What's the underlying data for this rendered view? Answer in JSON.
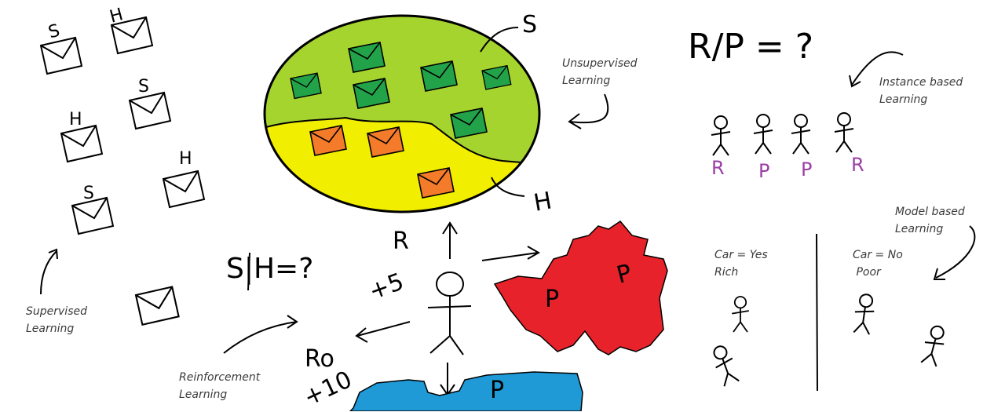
{
  "labels": {
    "unsupervised_1": "Unsupervised",
    "unsupervised_2": "Learning",
    "supervised_1": "Supervised",
    "supervised_2": "Learning",
    "reinforcement_1": "Reinforcement",
    "reinforcement_2": "Learning",
    "instance_1": "Instance based",
    "instance_2": "Learning",
    "model_1": "Model based",
    "model_2": "Learning",
    "car_yes": "Car = Yes",
    "rich": "Rich",
    "car_no": "Car = No",
    "poor": "Poor"
  },
  "handwriting": {
    "spam_s": "S",
    "ham_h": "H",
    "env_s1": "S",
    "env_h1": "H",
    "env_h2": "H",
    "env_s2": "S",
    "env_h3": "H",
    "env_s3": "S",
    "question_sh": "S|H=?",
    "question_rp": "R/P = ?",
    "reward_r": "R",
    "plus5": "+5",
    "ro": "Ro",
    "plus10": "+10",
    "p_red1": "P",
    "p_red2": "P",
    "p_blue": "P",
    "tags": [
      "R",
      "P",
      "P",
      "R"
    ]
  },
  "colors": {
    "unsupervised_top": "#a6d42f",
    "unsupervised_bottom": "#f2ee00",
    "envelope_green": "#22a34a",
    "envelope_orange": "#f47b2a",
    "fire_red": "#e8222a",
    "water_blue": "#1f9ad6",
    "tag_purple": "#9b3fa6"
  }
}
